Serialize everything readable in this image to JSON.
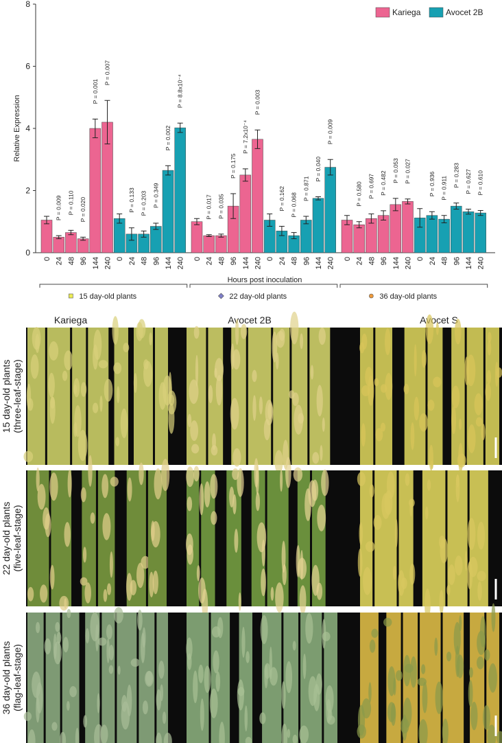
{
  "chart_data": {
    "type": "bar",
    "y_label": "Relative Expression",
    "x_label": "Hours post inoculation",
    "ylim": [
      0,
      8
    ],
    "yticks": [
      0,
      2,
      4,
      6,
      8
    ],
    "categories": [
      "0",
      "24",
      "48",
      "96",
      "144",
      "240"
    ],
    "series": [
      {
        "name": "Kariega",
        "color": "#ec6591"
      },
      {
        "name": "Avocet 2B",
        "color": "#17a0b2"
      }
    ],
    "legend": "upper right",
    "groups": [
      {
        "name": "15 day-old plants",
        "marker": "square",
        "marker_color": "#ecec55",
        "values": [
          [
            1.05,
            0.5,
            0.65,
            0.45,
            4.0,
            4.2
          ],
          [
            1.1,
            0.6,
            0.6,
            0.85,
            2.65,
            4.02
          ]
        ],
        "errors": [
          [
            0.12,
            0.05,
            0.07,
            0.05,
            0.3,
            0.7
          ],
          [
            0.15,
            0.2,
            0.1,
            0.1,
            0.15,
            0.15
          ]
        ],
        "p_labels": [
          [
            null,
            "P = 0.009",
            "P = 0.110",
            "P = 0.020",
            "P = 0.001",
            "P = 0.007"
          ],
          [
            null,
            "P = 0.133",
            "P = 0.203",
            "P = 0.349",
            "P = 0.002",
            "P = 8.8x10⁻⁴"
          ]
        ]
      },
      {
        "name": "22 day-old plants",
        "marker": "diamond",
        "marker_color": "#7f7fc9",
        "values": [
          [
            1.0,
            0.55,
            0.55,
            1.5,
            2.5,
            3.65
          ],
          [
            1.05,
            0.7,
            0.55,
            1.05,
            1.75,
            2.75
          ]
        ],
        "errors": [
          [
            0.1,
            0.03,
            0.05,
            0.4,
            0.2,
            0.3
          ],
          [
            0.2,
            0.15,
            0.1,
            0.12,
            0.05,
            0.25
          ]
        ],
        "p_labels": [
          [
            null,
            "P = 0.017",
            "P = 0.035",
            "P = 0.175",
            "P = 7.2x10⁻⁴",
            "P = 0.003"
          ],
          [
            null,
            "P = 0.162",
            "P = 0.068",
            "P = 0.871",
            "P = 0.040",
            "P = 0.009"
          ]
        ]
      },
      {
        "name": "36 day-old plants",
        "marker": "circle",
        "marker_color": "#ee9a3c",
        "values": [
          [
            1.05,
            0.9,
            1.1,
            1.2,
            1.55,
            1.65
          ],
          [
            1.12,
            1.2,
            1.08,
            1.5,
            1.32,
            1.28
          ]
        ],
        "errors": [
          [
            0.15,
            0.1,
            0.15,
            0.15,
            0.2,
            0.08
          ],
          [
            0.3,
            0.12,
            0.12,
            0.1,
            0.08,
            0.08
          ]
        ],
        "p_labels": [
          [
            null,
            "P = 0.580",
            "P = 0.697",
            "P = 0.482",
            "P = 0.053",
            "P = 0.027"
          ],
          [
            null,
            "P = 0.936",
            "P = 0.911",
            "P = 0.283",
            "P = 0.627",
            "P = 0.610"
          ]
        ]
      }
    ]
  },
  "photos": {
    "columns": [
      "Kariega",
      "Avocet 2B",
      "Avocet S"
    ],
    "rows": [
      {
        "label": "15 day-old plants",
        "stage": "(three-leaf-stage)"
      },
      {
        "label": "22 day-old plants",
        "stage": "(five-leaf-stage)"
      },
      {
        "label": "36 day-old plants",
        "stage": "(flag-leaf-stage)"
      }
    ]
  }
}
